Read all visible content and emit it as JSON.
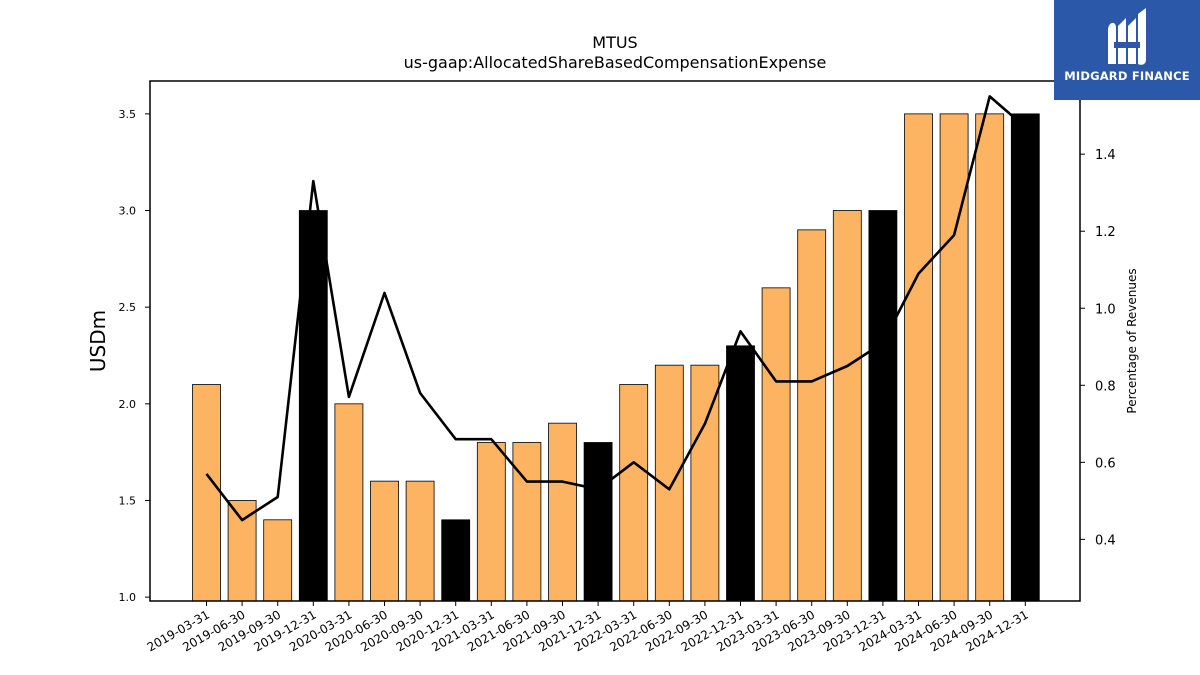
{
  "chart_data": {
    "type": "bar",
    "title": "MTUS",
    "subtitle": "us-gaap:AllocatedShareBasedCompensationExpense",
    "ylabel": "USDm",
    "y2label": "Percentage of Revenues",
    "ylim": [
      0.98,
      3.67
    ],
    "y2lim": [
      0.24,
      1.59
    ],
    "yticks": [
      "1.0",
      "1.5",
      "2.0",
      "2.5",
      "3.0",
      "3.5"
    ],
    "y2ticks": [
      "0.4",
      "0.6",
      "0.8",
      "1.0",
      "1.2",
      "1.4"
    ],
    "categories": [
      "2019-03-31",
      "2019-06-30",
      "2019-09-30",
      "2019-12-31",
      "2020-03-31",
      "2020-06-30",
      "2020-09-30",
      "2020-12-31",
      "2021-03-31",
      "2021-06-30",
      "2021-09-30",
      "2021-12-31",
      "2022-03-31",
      "2022-06-30",
      "2022-09-30",
      "2022-12-31",
      "2023-03-31",
      "2023-06-30",
      "2023-09-30",
      "2023-12-31",
      "2024-03-31",
      "2024-06-30",
      "2024-09-30",
      "2024-12-31"
    ],
    "values": [
      2.1,
      1.5,
      1.4,
      3.0,
      2.0,
      1.6,
      1.6,
      1.4,
      1.8,
      1.8,
      1.9,
      1.8,
      2.1,
      2.2,
      2.2,
      2.3,
      2.6,
      2.9,
      3.0,
      3.0,
      3.5,
      3.5,
      3.5,
      3.5
    ],
    "highlight": [
      false,
      false,
      false,
      true,
      false,
      false,
      false,
      true,
      false,
      false,
      false,
      true,
      false,
      false,
      false,
      true,
      false,
      false,
      false,
      true,
      false,
      false,
      false,
      true
    ],
    "series": [
      {
        "values": [
          0.57,
          0.45,
          0.51,
          1.33,
          0.77,
          1.04,
          0.78,
          0.66,
          0.66,
          0.55,
          0.55,
          0.53,
          0.6,
          0.53,
          0.7,
          0.94,
          0.81,
          0.81,
          0.85,
          0.91,
          1.09,
          1.19,
          1.55,
          1.47
        ]
      }
    ],
    "colors": {
      "bar": "#fdb462",
      "highlight": "#000000",
      "line": "#000000"
    },
    "grid": false
  },
  "logo": {
    "text": "MIDGARD FINANCE",
    "background": "#2b58a9"
  }
}
